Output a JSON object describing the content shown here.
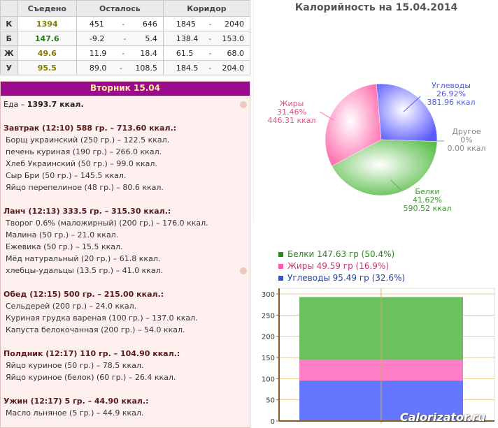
{
  "summary": {
    "headers": [
      "",
      "Съедено",
      "Осталось",
      "Коридор"
    ],
    "rows": [
      {
        "label": "К",
        "eaten": "1394",
        "eaten_color": "#8a7a00",
        "rem_lo": "451",
        "rem_hi": "646",
        "cor_lo": "1845",
        "cor_hi": "2040"
      },
      {
        "label": "Б",
        "eaten": "147.6",
        "eaten_color": "#2a7a1a",
        "rem_lo": "-9.2",
        "rem_hi": "5.4",
        "cor_lo": "138.4",
        "cor_hi": "153.0"
      },
      {
        "label": "Ж",
        "eaten": "49.6",
        "eaten_color": "#8a7a00",
        "rem_lo": "11.9",
        "rem_hi": "18.4",
        "cor_lo": "61.5",
        "cor_hi": "68.0"
      },
      {
        "label": "У",
        "eaten": "95.5",
        "eaten_color": "#8a7a00",
        "rem_lo": "89.0",
        "rem_hi": "108.5",
        "cor_lo": "184.5",
        "cor_hi": "204.0"
      }
    ],
    "dash": "-"
  },
  "day": {
    "title": "Вторник 15.04",
    "total_prefix": "Еда – ",
    "total_value": "1393.7 ккал.",
    "meals": [
      {
        "title": "Завтрак (12:10) 588 гр. – 713.60 ккал.:",
        "items": [
          "Борщ украинский (250 гр.) – 122.5 ккал.",
          "печень куриная (190 гр.) – 266.0 ккал.",
          "Хлеб Украинский (50 гр.) – 99.0 ккал.",
          "Сыр Бри (50 гр.) – 145.5 ккал.",
          "Яйцо перепелиное (48 гр.) – 80.6 ккал."
        ]
      },
      {
        "title": "Ланч (12:13) 333.5 гр. – 315.30 ккал.:",
        "items": [
          "Творог 0.6% (маложирный) (200 гр.) – 176.0 ккал.",
          "Малина (50 гр.) – 21.0 ккал.",
          "Ежевика (50 гр.) – 15.5 ккал.",
          "Мёд натуральный (20 гр.) – 61.8 ккал.",
          "хлебцы-удальцы (13.5 гр.) – 41.0 ккал."
        ]
      },
      {
        "title": "Обед (12:15) 500 гр. – 215.00 ккал.:",
        "items": [
          "Сельдерей (200 гр.) – 24.0 ккал.",
          "Куриная грудка вареная (100 гр.) – 137.0 ккал.",
          "Капуста белокочанная (200 гр.) – 54.0 ккал."
        ]
      },
      {
        "title": "Полдник (12:17) 110 гр. – 104.90 ккал.:",
        "items": [
          "Яйцо куриное (50 гр.) – 78.5 ккал.",
          "Яйцо куриное (белок) (60 гр.) – 26.4 ккал."
        ]
      },
      {
        "title": "Ужин (12:17) 5 гр. – 44.90 ккал.:",
        "items": [
          "Масло льняное (5 гр.) – 44.9 ккал."
        ]
      }
    ]
  },
  "chart_data": [
    {
      "type": "pie",
      "title": "Калорийность на 15.04.2014",
      "slices": [
        {
          "name": "Углеводы",
          "percent": "26.92%",
          "kcal": "381.96 ккал",
          "value": 26.92,
          "color": "#5a5aff"
        },
        {
          "name": "Другое",
          "percent": "0%",
          "kcal": "0.00 ккал",
          "value": 0,
          "color": "#999999"
        },
        {
          "name": "Белки",
          "percent": "41.62%",
          "kcal": "590.52 ккал",
          "value": 41.62,
          "color": "#55bb44"
        },
        {
          "name": "Жиры",
          "percent": "31.46%",
          "kcal": "446.31 ккал",
          "value": 31.46,
          "color": "#ff66aa"
        }
      ]
    },
    {
      "type": "bar",
      "stacked": true,
      "legend": [
        {
          "text": "Белки 147.63 гр (50.4%)",
          "color": "#2a8a1a",
          "swatch": "#2a8a1a"
        },
        {
          "text": "Жиры 49.59 гр (16.9%)",
          "color": "#cc3377",
          "swatch": "#ff55aa"
        },
        {
          "text": "Углеводы 95.49 гр (32.6%)",
          "color": "#2244aa",
          "swatch": "#3355cc"
        }
      ],
      "series": [
        {
          "name": "Углеводы",
          "value": 95.49,
          "color": "#6677ff"
        },
        {
          "name": "Жиры",
          "value": 49.59,
          "color": "#ff7fc6"
        },
        {
          "name": "Белки",
          "value": 147.63,
          "color": "#6cc060"
        }
      ],
      "yticks": [
        "0",
        "50",
        "100",
        "150",
        "200",
        "250",
        "300"
      ],
      "ylim": [
        0,
        300
      ]
    }
  ],
  "watermark": "Calorizator.ru"
}
